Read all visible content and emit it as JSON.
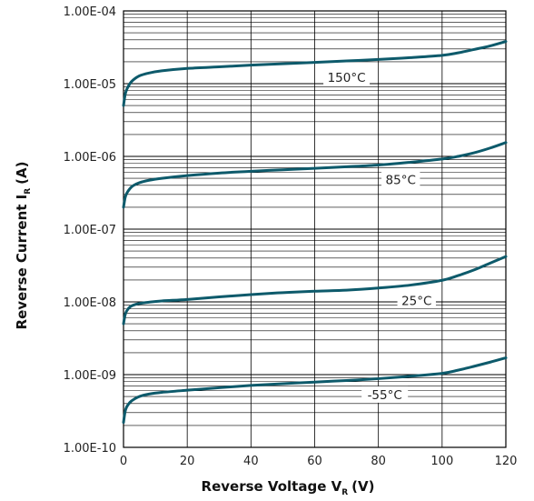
{
  "chart_data": {
    "type": "line",
    "xlabel": "Reverse Voltage V",
    "xlabel_sub": "R",
    "xlabel_unit": "(V)",
    "ylabel": "Reverse Current I",
    "ylabel_sub": "R",
    "ylabel_unit": "(A)",
    "x_scale": "linear",
    "y_scale": "log",
    "xlim": [
      0,
      120
    ],
    "ylim": [
      1e-10,
      0.0001
    ],
    "grid": true,
    "x_ticks": [
      "0",
      "20",
      "40",
      "60",
      "80",
      "100",
      "120"
    ],
    "x_tick_values": [
      0,
      20,
      40,
      60,
      80,
      100,
      120
    ],
    "y_ticks": [
      "1.00E-10",
      "1.00E-09",
      "1.00E-08",
      "1.00E-07",
      "1.00E-06",
      "1.00E-05",
      "1.00E-04"
    ],
    "y_tick_values": [
      1e-10,
      1e-09,
      1e-08,
      1e-07,
      1e-06,
      1e-05,
      0.0001
    ],
    "line_color": "#0d5a6b",
    "grid_color": "#000000",
    "series": [
      {
        "label": "150°C",
        "label_x": 70,
        "x": [
          0,
          0.5,
          1,
          2,
          3,
          5,
          8,
          12,
          20,
          30,
          40,
          50,
          60,
          70,
          80,
          90,
          100,
          105,
          110,
          115,
          120
        ],
        "y": [
          5e-06,
          7e-06,
          8.3e-06,
          1e-05,
          1.12e-05,
          1.28e-05,
          1.4e-05,
          1.5e-05,
          1.62e-05,
          1.7e-05,
          1.8e-05,
          1.88e-05,
          1.96e-05,
          2.05e-05,
          2.15e-05,
          2.28e-05,
          2.45e-05,
          2.65e-05,
          2.95e-05,
          3.3e-05,
          3.8e-05
        ]
      },
      {
        "label": "85°C",
        "label_x": 87,
        "x": [
          0,
          0.5,
          1,
          2,
          3,
          5,
          8,
          12,
          20,
          30,
          40,
          50,
          60,
          70,
          80,
          90,
          100,
          105,
          110,
          115,
          120
        ],
        "y": [
          2e-07,
          2.7e-07,
          3.1e-07,
          3.6e-07,
          3.95e-07,
          4.35e-07,
          4.7e-07,
          5e-07,
          5.45e-07,
          5.9e-07,
          6.25e-07,
          6.55e-07,
          6.85e-07,
          7.2e-07,
          7.6e-07,
          8.3e-07,
          9.2e-07,
          1e-06,
          1.12e-06,
          1.3e-06,
          1.55e-06
        ]
      },
      {
        "label": "25°C",
        "label_x": 92,
        "x": [
          0,
          0.5,
          1,
          2,
          3,
          5,
          8,
          12,
          20,
          30,
          40,
          50,
          60,
          70,
          80,
          90,
          100,
          105,
          110,
          115,
          120
        ],
        "y": [
          5e-09,
          6.6e-09,
          7.5e-09,
          8.5e-09,
          9e-09,
          9.5e-09,
          9.9e-09,
          1.03e-08,
          1.08e-08,
          1.17e-08,
          1.26e-08,
          1.34e-08,
          1.4e-08,
          1.45e-08,
          1.55e-08,
          1.7e-08,
          1.98e-08,
          2.3e-08,
          2.75e-08,
          3.4e-08,
          4.2e-08
        ]
      },
      {
        "label": "-55°C",
        "label_x": 82,
        "x": [
          0,
          0.5,
          1,
          2,
          3,
          5,
          8,
          12,
          20,
          30,
          40,
          50,
          60,
          70,
          80,
          90,
          100,
          105,
          110,
          115,
          120
        ],
        "y": [
          2.2e-10,
          3.1e-10,
          3.6e-10,
          4.15e-10,
          4.5e-10,
          5e-10,
          5.4e-10,
          5.7e-10,
          6.1e-10,
          6.6e-10,
          7.1e-10,
          7.5e-10,
          7.9e-10,
          8.3e-10,
          8.8e-10,
          9.5e-10,
          1.04e-09,
          1.15e-09,
          1.3e-09,
          1.48e-09,
          1.7e-09
        ]
      }
    ]
  }
}
